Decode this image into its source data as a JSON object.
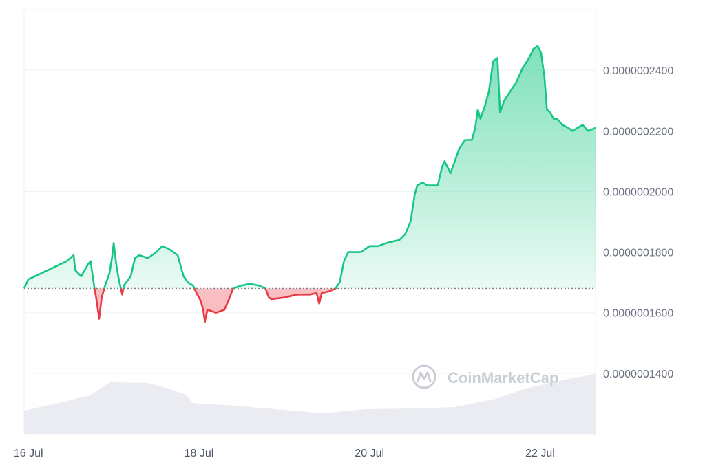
{
  "chart_data": {
    "type": "area",
    "y_ticks": [
      {
        "value": 1.4e-07,
        "label": "0.0000001400"
      },
      {
        "value": 1.6e-07,
        "label": "0.0000001600"
      },
      {
        "value": 1.8e-07,
        "label": "0.0000001800"
      },
      {
        "value": 2e-07,
        "label": "0.0000002000"
      },
      {
        "value": 2.2e-07,
        "label": "0.0000002200"
      },
      {
        "value": 2.4e-07,
        "label": "0.0000002400"
      }
    ],
    "ylim": [
      1.2e-07,
      2.6e-07
    ],
    "x_ticks": [
      {
        "day": 16,
        "label": "16 Jul"
      },
      {
        "day": 18,
        "label": "18 Jul"
      },
      {
        "day": 20,
        "label": "20 Jul"
      },
      {
        "day": 22,
        "label": "22 Jul"
      }
    ],
    "xlim": [
      15.95,
      22.65
    ],
    "baseline": 1.68e-07,
    "grid": true,
    "colors": {
      "up": "#16c784",
      "down": "#ea3943",
      "volume": "#e6e9ee",
      "grid": "#eff2f5",
      "baseline": "#777e90"
    },
    "price_series": [
      [
        15.95,
        1.68e-07
      ],
      [
        16.0,
        1.71e-07
      ],
      [
        16.15,
        1.73e-07
      ],
      [
        16.3,
        1.75e-07
      ],
      [
        16.45,
        1.77e-07
      ],
      [
        16.53,
        1.79e-07
      ],
      [
        16.55,
        1.74e-07
      ],
      [
        16.62,
        1.72e-07
      ],
      [
        16.7,
        1.76e-07
      ],
      [
        16.73,
        1.77e-07
      ],
      [
        16.77,
        1.69e-07
      ],
      [
        16.8,
        1.64e-07
      ],
      [
        16.83,
        1.58e-07
      ],
      [
        16.86,
        1.65e-07
      ],
      [
        16.9,
        1.69e-07
      ],
      [
        16.95,
        1.73e-07
      ],
      [
        16.98,
        1.78e-07
      ],
      [
        17.0,
        1.83e-07
      ],
      [
        17.03,
        1.76e-07
      ],
      [
        17.06,
        1.71e-07
      ],
      [
        17.1,
        1.66e-07
      ],
      [
        17.12,
        1.69e-07
      ],
      [
        17.2,
        1.72e-07
      ],
      [
        17.25,
        1.78e-07
      ],
      [
        17.3,
        1.79e-07
      ],
      [
        17.4,
        1.78e-07
      ],
      [
        17.5,
        1.8e-07
      ],
      [
        17.57,
        1.82e-07
      ],
      [
        17.65,
        1.81e-07
      ],
      [
        17.75,
        1.79e-07
      ],
      [
        17.82,
        1.72e-07
      ],
      [
        17.87,
        1.7e-07
      ],
      [
        17.93,
        1.69e-07
      ],
      [
        17.98,
        1.66e-07
      ],
      [
        18.02,
        1.64e-07
      ],
      [
        18.05,
        1.61e-07
      ],
      [
        18.07,
        1.57e-07
      ],
      [
        18.1,
        1.61e-07
      ],
      [
        18.2,
        1.6e-07
      ],
      [
        18.3,
        1.61e-07
      ],
      [
        18.36,
        1.65e-07
      ],
      [
        18.4,
        1.68e-07
      ],
      [
        18.5,
        1.69e-07
      ],
      [
        18.6,
        1.695e-07
      ],
      [
        18.7,
        1.69e-07
      ],
      [
        18.78,
        1.68e-07
      ],
      [
        18.82,
        1.65e-07
      ],
      [
        18.85,
        1.645e-07
      ],
      [
        19.0,
        1.65e-07
      ],
      [
        19.15,
        1.66e-07
      ],
      [
        19.3,
        1.66e-07
      ],
      [
        19.38,
        1.665e-07
      ],
      [
        19.41,
        1.63e-07
      ],
      [
        19.44,
        1.665e-07
      ],
      [
        19.52,
        1.67e-07
      ],
      [
        19.6,
        1.68e-07
      ],
      [
        19.65,
        1.7e-07
      ],
      [
        19.7,
        1.77e-07
      ],
      [
        19.75,
        1.8e-07
      ],
      [
        19.9,
        1.8e-07
      ],
      [
        20.0,
        1.82e-07
      ],
      [
        20.1,
        1.82e-07
      ],
      [
        20.2,
        1.83e-07
      ],
      [
        20.35,
        1.84e-07
      ],
      [
        20.42,
        1.86e-07
      ],
      [
        20.48,
        1.9e-07
      ],
      [
        20.53,
        1.99e-07
      ],
      [
        20.56,
        2.02e-07
      ],
      [
        20.62,
        2.03e-07
      ],
      [
        20.68,
        2.02e-07
      ],
      [
        20.8,
        2.02e-07
      ],
      [
        20.85,
        2.08e-07
      ],
      [
        20.88,
        2.1e-07
      ],
      [
        20.95,
        2.06e-07
      ],
      [
        21.0,
        2.1e-07
      ],
      [
        21.05,
        2.14e-07
      ],
      [
        21.12,
        2.17e-07
      ],
      [
        21.2,
        2.17e-07
      ],
      [
        21.24,
        2.21e-07
      ],
      [
        21.27,
        2.27e-07
      ],
      [
        21.3,
        2.24e-07
      ],
      [
        21.35,
        2.28e-07
      ],
      [
        21.4,
        2.33e-07
      ],
      [
        21.45,
        2.43e-07
      ],
      [
        21.5,
        2.44e-07
      ],
      [
        21.53,
        2.26e-07
      ],
      [
        21.58,
        2.3e-07
      ],
      [
        21.65,
        2.33e-07
      ],
      [
        21.72,
        2.36e-07
      ],
      [
        21.8,
        2.41e-07
      ],
      [
        21.87,
        2.44e-07
      ],
      [
        21.92,
        2.47e-07
      ],
      [
        21.97,
        2.48e-07
      ],
      [
        22.01,
        2.46e-07
      ],
      [
        22.05,
        2.38e-07
      ],
      [
        22.08,
        2.27e-07
      ],
      [
        22.12,
        2.26e-07
      ],
      [
        22.16,
        2.24e-07
      ],
      [
        22.2,
        2.24e-07
      ],
      [
        22.26,
        2.22e-07
      ],
      [
        22.33,
        2.21e-07
      ],
      [
        22.38,
        2.2e-07
      ],
      [
        22.44,
        2.21e-07
      ],
      [
        22.5,
        2.22e-07
      ],
      [
        22.56,
        2.2e-07
      ],
      [
        22.65,
        2.21e-07
      ]
    ]
  },
  "watermark": {
    "text": "CoinMarketCap",
    "icon": "coinmarketcap-logo-icon"
  }
}
